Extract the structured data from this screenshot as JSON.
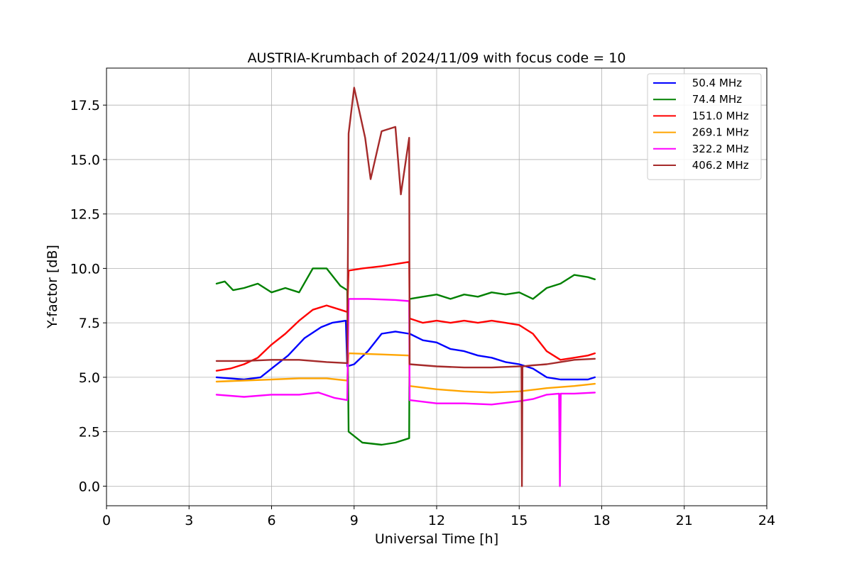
{
  "chart_data": {
    "type": "line",
    "title": "AUSTRIA-Krumbach of 2024/11/09 with focus code = 10",
    "xlabel": "Universal Time [h]",
    "ylabel": "Y-factor [dB]",
    "xlim": [
      0,
      24
    ],
    "ylim": [
      -0.9,
      19.2
    ],
    "xticks": [
      0,
      3,
      6,
      9,
      12,
      15,
      18,
      21,
      24
    ],
    "xtick_labels": [
      "0",
      "3",
      "6",
      "9",
      "12",
      "15",
      "18",
      "21",
      "24"
    ],
    "yticks": [
      0.0,
      2.5,
      5.0,
      7.5,
      10.0,
      12.5,
      15.0,
      17.5
    ],
    "ytick_labels": [
      "0.0",
      "2.5",
      "5.0",
      "7.5",
      "10.0",
      "12.5",
      "15.0",
      "17.5"
    ],
    "grid": true,
    "legend_position": "top-right",
    "series": [
      {
        "name": " 50.4 MHz",
        "color": "#0000ff",
        "x": [
          4.0,
          5.0,
          5.6,
          6.0,
          6.6,
          7.2,
          7.8,
          8.2,
          8.7,
          8.75,
          9.0,
          9.5,
          10.0,
          10.5,
          11.0,
          11.02,
          11.5,
          12.0,
          12.5,
          13.0,
          13.5,
          14.0,
          14.5,
          15.0,
          15.5,
          16.0,
          16.5,
          17.0,
          17.5,
          17.75
        ],
        "y": [
          5.0,
          4.9,
          5.0,
          5.4,
          6.0,
          6.8,
          7.3,
          7.5,
          7.6,
          5.5,
          5.6,
          6.2,
          7.0,
          7.1,
          7.0,
          7.0,
          6.7,
          6.6,
          6.3,
          6.2,
          6.0,
          5.9,
          5.7,
          5.6,
          5.4,
          5.0,
          4.9,
          4.9,
          4.9,
          5.0
        ]
      },
      {
        "name": " 74.4 MHz",
        "color": "#008000",
        "x": [
          4.0,
          4.3,
          4.6,
          5.0,
          5.5,
          6.0,
          6.5,
          7.0,
          7.5,
          8.0,
          8.5,
          8.75,
          8.8,
          9.3,
          10.0,
          10.5,
          11.0,
          11.02,
          11.5,
          12.0,
          12.5,
          13.0,
          13.5,
          14.0,
          14.5,
          15.0,
          15.5,
          16.0,
          16.5,
          17.0,
          17.5,
          17.75
        ],
        "y": [
          9.3,
          9.4,
          9.0,
          9.1,
          9.3,
          8.9,
          9.1,
          8.9,
          10.0,
          10.0,
          9.2,
          9.0,
          2.5,
          2.0,
          1.9,
          2.0,
          2.2,
          8.6,
          8.7,
          8.8,
          8.6,
          8.8,
          8.7,
          8.9,
          8.8,
          8.9,
          8.6,
          9.1,
          9.3,
          9.7,
          9.6,
          9.5
        ]
      },
      {
        "name": " 151.0 MHz",
        "color": "#ff0000",
        "x": [
          4.0,
          4.5,
          5.0,
          5.5,
          6.0,
          6.5,
          7.0,
          7.5,
          8.0,
          8.5,
          8.75,
          8.8,
          9.3,
          10.0,
          10.5,
          11.0,
          11.02,
          11.5,
          12.0,
          12.5,
          13.0,
          13.5,
          14.0,
          14.5,
          15.0,
          15.5,
          16.0,
          16.5,
          17.0,
          17.5,
          17.75
        ],
        "y": [
          5.3,
          5.4,
          5.6,
          5.9,
          6.5,
          7.0,
          7.6,
          8.1,
          8.3,
          8.1,
          8.0,
          9.9,
          10.0,
          10.1,
          10.2,
          10.3,
          7.7,
          7.5,
          7.6,
          7.5,
          7.6,
          7.5,
          7.6,
          7.5,
          7.4,
          7.0,
          6.2,
          5.8,
          5.9,
          6.0,
          6.1
        ]
      },
      {
        "name": " 269.1 MHz",
        "color": "#ffa500",
        "x": [
          4.0,
          5.0,
          6.0,
          7.0,
          8.0,
          8.75,
          8.8,
          10.0,
          11.0,
          11.02,
          12.0,
          13.0,
          14.0,
          15.0,
          16.0,
          17.0,
          17.75
        ],
        "y": [
          4.8,
          4.85,
          4.9,
          4.95,
          4.95,
          4.85,
          6.1,
          6.05,
          6.0,
          4.6,
          4.45,
          4.35,
          4.3,
          4.35,
          4.5,
          4.6,
          4.7
        ]
      },
      {
        "name": " 322.2 MHz",
        "color": "#ff00ff",
        "x": [
          4.0,
          5.0,
          6.0,
          7.0,
          7.7,
          8.3,
          8.75,
          8.8,
          9.5,
          10.5,
          11.0,
          11.02,
          12.0,
          13.0,
          14.0,
          15.0,
          15.5,
          16.0,
          16.45,
          16.48,
          16.51,
          16.55,
          17.0,
          17.75
        ],
        "y": [
          4.2,
          4.1,
          4.2,
          4.2,
          4.3,
          4.05,
          3.95,
          8.6,
          8.6,
          8.55,
          8.5,
          3.95,
          3.8,
          3.8,
          3.75,
          3.9,
          4.0,
          4.2,
          4.25,
          0.0,
          4.25,
          4.25,
          4.25,
          4.3
        ]
      },
      {
        "name": " 406.2 MHz",
        "color": "#a52a2a",
        "x": [
          4.0,
          5.0,
          6.0,
          7.0,
          8.0,
          8.75,
          8.8,
          9.0,
          9.4,
          9.6,
          10.0,
          10.5,
          10.7,
          11.0,
          11.02,
          12.0,
          13.0,
          14.0,
          15.0,
          15.08,
          15.1,
          15.12,
          15.5,
          16.0,
          16.5,
          17.0,
          17.75
        ],
        "y": [
          5.75,
          5.75,
          5.8,
          5.8,
          5.7,
          5.65,
          16.2,
          18.3,
          16.0,
          14.1,
          16.3,
          16.5,
          13.4,
          16.0,
          5.6,
          5.5,
          5.45,
          5.45,
          5.5,
          5.5,
          0.0,
          5.5,
          5.55,
          5.6,
          5.7,
          5.8,
          5.85
        ]
      }
    ]
  }
}
